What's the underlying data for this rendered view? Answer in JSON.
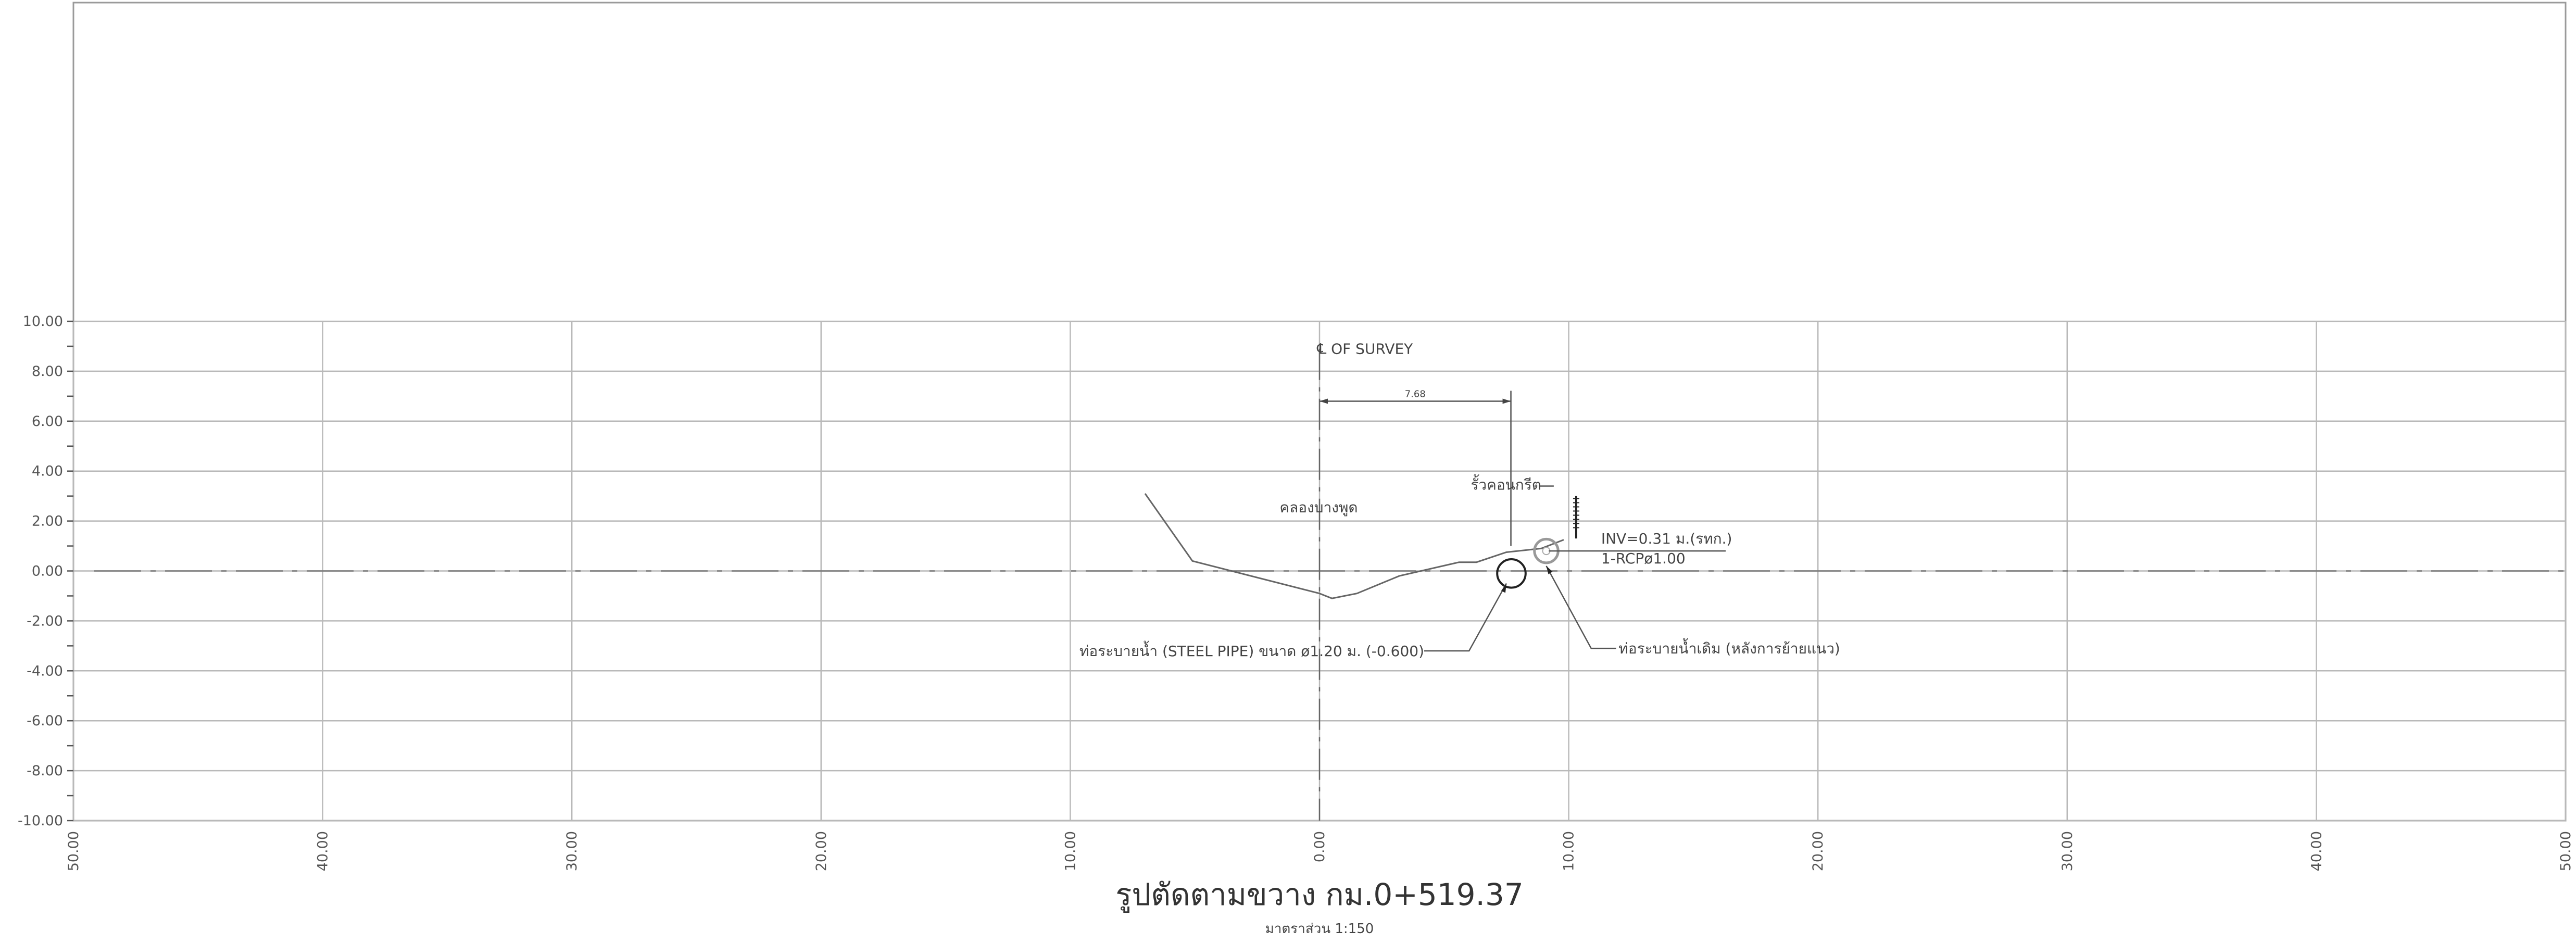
{
  "chart_data": {
    "type": "line",
    "title": "รูปตัดตามขวาง กม.0+519.37",
    "subtitle": "มาตราส่วน 1:150",
    "xlim": [
      -50,
      50
    ],
    "ylim": [
      -10,
      10
    ],
    "y_ticks": [
      "10.00",
      "8.00",
      "6.00",
      "4.00",
      "2.00",
      "0.00",
      "-2.00",
      "-4.00",
      "-6.00",
      "-8.00",
      "-10.00"
    ],
    "x_ticks": [
      "50.00",
      "40.00",
      "30.00",
      "20.00",
      "10.00",
      "0.00",
      "10.00",
      "20.00",
      "30.00",
      "40.00",
      "50.00"
    ],
    "grid": true,
    "series": [
      {
        "x": [
          -7.0,
          -5.1,
          0.0,
          0.5,
          1.5,
          3.2,
          5.6,
          6.3,
          7.5,
          8.9,
          9.8
        ],
        "y": [
          3.1,
          0.4,
          -0.9,
          -1.1,
          -0.9,
          -0.2,
          0.35,
          0.35,
          0.75,
          0.9,
          1.25
        ]
      }
    ],
    "pipes": [
      {
        "x": 7.7,
        "y": -0.1,
        "diameter": 1.2
      },
      {
        "x": 9.1,
        "y": 0.8,
        "diameter": 1.0
      }
    ],
    "dimension": {
      "from_x": 0.0,
      "to_x": 7.68,
      "value": "7.68"
    },
    "annotations": {
      "centerline": "℄ OF SURVEY",
      "canal": "คลองบางพูด",
      "fence": "รั้วคอนกรีต",
      "inv": "INV=0.31 ม.(รทก.)",
      "rcp": "1-RCPø1.00",
      "steel_pipe": "ท่อระบายน้ำ (STEEL PIPE) ขนาด ø1.20 ม. (-0.600)",
      "existing_pipe": "ท่อระบายน้ำเดิม (หลังการย้ายแนว)"
    }
  }
}
